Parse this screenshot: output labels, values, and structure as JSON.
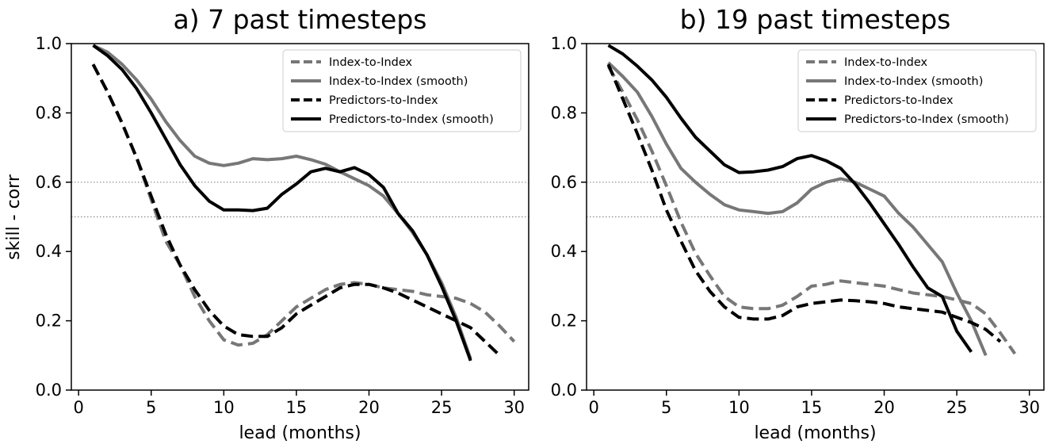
{
  "figure": {
    "ylabel": "skill - corr"
  },
  "chart_data": [
    {
      "type": "line",
      "title": "a) 7 past timesteps",
      "xlabel": "lead (months)",
      "ylabel": "skill - corr",
      "xlim": [
        -0.5,
        31
      ],
      "ylim": [
        0,
        1
      ],
      "xticks": [
        0,
        5,
        10,
        15,
        20,
        25,
        30
      ],
      "yticks": [
        0.0,
        0.2,
        0.4,
        0.6,
        0.8,
        1.0
      ],
      "ytick_labels": [
        "0.0",
        "0.2",
        "0.4",
        "0.6",
        "0.8",
        "1.0"
      ],
      "reference_lines": [
        0.6,
        0.5
      ],
      "legend_position": "top-right",
      "series": [
        {
          "name": "Index-to-Index",
          "color": "#777777",
          "dash": "dashed",
          "x": [
            1,
            2,
            3,
            4,
            5,
            6,
            7,
            8,
            9,
            10,
            11,
            12,
            13,
            14,
            15,
            16,
            17,
            18,
            19,
            20,
            21,
            22,
            23,
            24,
            25,
            26,
            27,
            28,
            29,
            30
          ],
          "y": [
            0.94,
            0.86,
            0.77,
            0.67,
            0.55,
            0.43,
            0.36,
            0.27,
            0.2,
            0.145,
            0.13,
            0.135,
            0.16,
            0.2,
            0.24,
            0.265,
            0.29,
            0.305,
            0.31,
            0.305,
            0.295,
            0.29,
            0.285,
            0.275,
            0.27,
            0.265,
            0.25,
            0.225,
            0.185,
            0.14
          ]
        },
        {
          "name": "Index-to-Index (smooth)",
          "color": "#777777",
          "dash": "solid",
          "x": [
            1,
            2,
            3,
            4,
            5,
            6,
            7,
            8,
            9,
            10,
            11,
            12,
            13,
            14,
            15,
            16,
            17,
            18,
            19,
            20,
            21,
            22,
            23,
            24,
            25,
            26,
            27
          ],
          "y": [
            0.995,
            0.975,
            0.94,
            0.895,
            0.84,
            0.775,
            0.72,
            0.675,
            0.655,
            0.648,
            0.655,
            0.668,
            0.665,
            0.668,
            0.675,
            0.665,
            0.652,
            0.63,
            0.61,
            0.59,
            0.56,
            0.51,
            0.455,
            0.39,
            0.31,
            0.21,
            0.09
          ]
        },
        {
          "name": "Predictors-to-Index",
          "color": "#000000",
          "dash": "dashed",
          "x": [
            1,
            2,
            3,
            4,
            5,
            6,
            7,
            8,
            9,
            10,
            11,
            12,
            13,
            14,
            15,
            16,
            17,
            18,
            19,
            20,
            21,
            22,
            23,
            24,
            25,
            26,
            27,
            28,
            29
          ],
          "y": [
            0.94,
            0.86,
            0.77,
            0.67,
            0.56,
            0.45,
            0.36,
            0.29,
            0.23,
            0.185,
            0.16,
            0.155,
            0.155,
            0.18,
            0.22,
            0.245,
            0.27,
            0.295,
            0.305,
            0.305,
            0.295,
            0.28,
            0.26,
            0.24,
            0.22,
            0.2,
            0.18,
            0.14,
            0.1
          ]
        },
        {
          "name": "Predictors-to-Index (smooth)",
          "color": "#000000",
          "dash": "solid",
          "x": [
            1,
            2,
            3,
            4,
            5,
            6,
            7,
            8,
            9,
            10,
            11,
            12,
            13,
            14,
            15,
            16,
            17,
            18,
            19,
            20,
            21,
            22,
            23,
            24,
            25,
            26,
            27
          ],
          "y": [
            0.995,
            0.965,
            0.925,
            0.87,
            0.8,
            0.725,
            0.65,
            0.59,
            0.545,
            0.52,
            0.52,
            0.518,
            0.525,
            0.565,
            0.595,
            0.63,
            0.64,
            0.63,
            0.642,
            0.622,
            0.585,
            0.51,
            0.46,
            0.39,
            0.3,
            0.2,
            0.085
          ]
        }
      ]
    },
    {
      "type": "line",
      "title": "b) 19 past timesteps",
      "xlabel": "lead (months)",
      "ylabel": "",
      "xlim": [
        -0.5,
        31
      ],
      "ylim": [
        0,
        1
      ],
      "xticks": [
        0,
        5,
        10,
        15,
        20,
        25,
        30
      ],
      "yticks": [
        0.0,
        0.2,
        0.4,
        0.6,
        0.8,
        1.0
      ],
      "ytick_labels": [
        "0.0",
        "0.2",
        "0.4",
        "0.6",
        "0.8",
        "1.0"
      ],
      "reference_lines": [
        0.6,
        0.5
      ],
      "legend_position": "top-right",
      "series": [
        {
          "name": "Index-to-Index",
          "color": "#777777",
          "dash": "dashed",
          "x": [
            1,
            2,
            3,
            4,
            5,
            6,
            7,
            8,
            9,
            10,
            11,
            12,
            13,
            14,
            15,
            16,
            17,
            18,
            19,
            20,
            21,
            22,
            23,
            24,
            25,
            26,
            27,
            28,
            29
          ],
          "y": [
            0.935,
            0.86,
            0.78,
            0.69,
            0.59,
            0.485,
            0.395,
            0.33,
            0.27,
            0.24,
            0.235,
            0.235,
            0.245,
            0.27,
            0.3,
            0.305,
            0.315,
            0.31,
            0.305,
            0.3,
            0.29,
            0.28,
            0.275,
            0.27,
            0.26,
            0.25,
            0.22,
            0.165,
            0.105
          ]
        },
        {
          "name": "Index-to-Index (smooth)",
          "color": "#777777",
          "dash": "solid",
          "x": [
            1,
            2,
            3,
            4,
            5,
            6,
            7,
            8,
            9,
            10,
            11,
            12,
            13,
            14,
            15,
            16,
            17,
            18,
            19,
            20,
            21,
            22,
            23,
            24,
            25,
            26,
            27
          ],
          "y": [
            0.945,
            0.905,
            0.86,
            0.79,
            0.71,
            0.64,
            0.6,
            0.565,
            0.535,
            0.52,
            0.515,
            0.51,
            0.515,
            0.54,
            0.58,
            0.6,
            0.61,
            0.6,
            0.58,
            0.56,
            0.51,
            0.47,
            0.42,
            0.37,
            0.28,
            0.2,
            0.1
          ]
        },
        {
          "name": "Predictors-to-Index",
          "color": "#000000",
          "dash": "dashed",
          "x": [
            1,
            2,
            3,
            4,
            5,
            6,
            7,
            8,
            9,
            10,
            11,
            12,
            13,
            14,
            15,
            16,
            17,
            18,
            19,
            20,
            21,
            22,
            23,
            24,
            25,
            26,
            27,
            28
          ],
          "y": [
            0.94,
            0.84,
            0.74,
            0.635,
            0.52,
            0.43,
            0.345,
            0.285,
            0.24,
            0.21,
            0.205,
            0.205,
            0.215,
            0.24,
            0.25,
            0.255,
            0.26,
            0.258,
            0.255,
            0.25,
            0.24,
            0.235,
            0.23,
            0.225,
            0.21,
            0.195,
            0.175,
            0.14
          ]
        },
        {
          "name": "Predictors-to-Index (smooth)",
          "color": "#000000",
          "dash": "solid",
          "x": [
            1,
            2,
            3,
            4,
            5,
            6,
            7,
            8,
            9,
            10,
            11,
            12,
            13,
            14,
            15,
            16,
            17,
            18,
            19,
            20,
            21,
            22,
            23,
            24,
            25,
            26
          ],
          "y": [
            0.995,
            0.97,
            0.935,
            0.895,
            0.845,
            0.785,
            0.73,
            0.69,
            0.65,
            0.628,
            0.63,
            0.635,
            0.645,
            0.668,
            0.677,
            0.662,
            0.64,
            0.595,
            0.54,
            0.48,
            0.42,
            0.355,
            0.295,
            0.27,
            0.17,
            0.11
          ]
        }
      ]
    }
  ]
}
